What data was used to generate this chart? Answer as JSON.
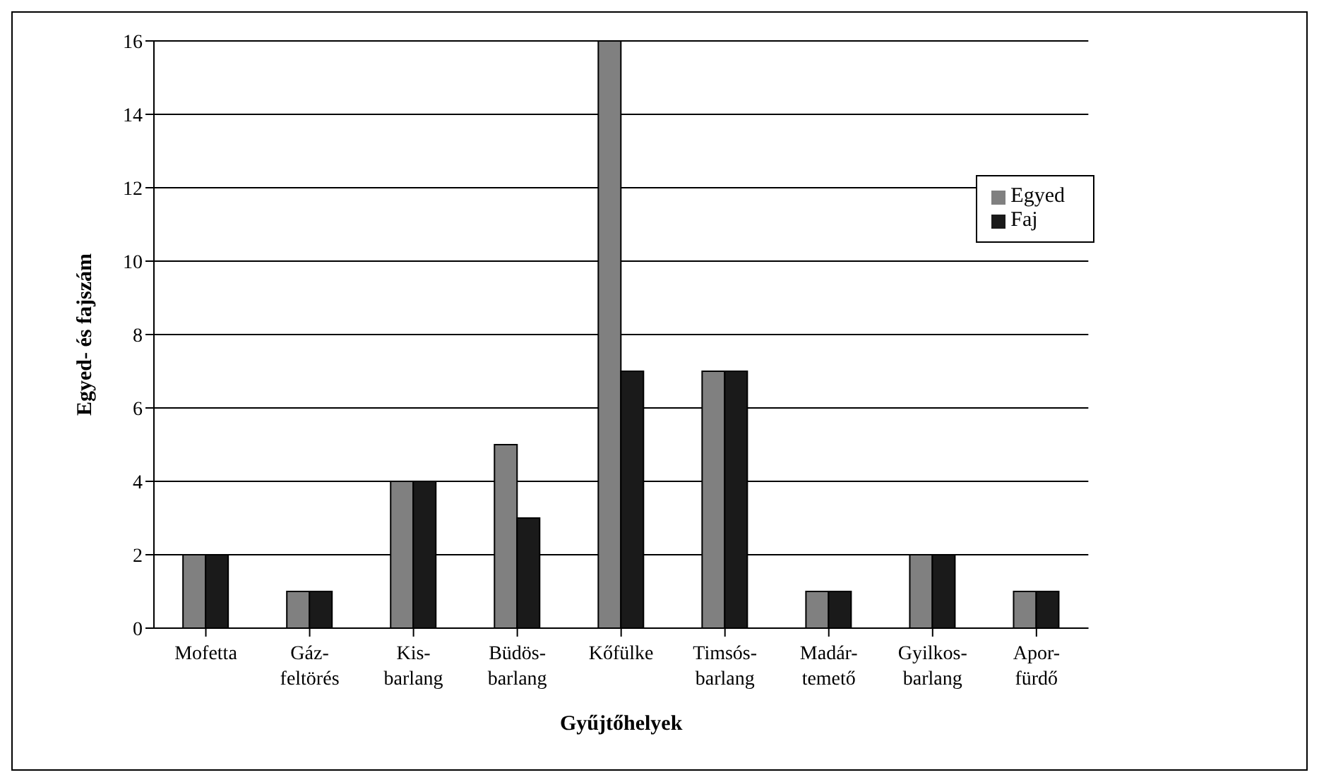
{
  "chart_data": {
    "type": "bar",
    "xlabel": "Gyűjtőhelyek",
    "ylabel": "Egyed- és fajszám",
    "categories": [
      "Mofetta",
      "Gáz-\nfeltörés",
      "Kis-\nbarlang",
      "Büdös-\nbarlang",
      "Kőfülke",
      "Timsós-\nbarlang",
      "Madár-\ntemető",
      "Gyilkos-\nbarlang",
      "Apor-\nfürdő"
    ],
    "series": [
      {
        "name": "Egyed",
        "color": "#808080",
        "values": [
          2,
          1,
          4,
          5,
          16,
          7,
          1,
          2,
          1
        ]
      },
      {
        "name": "Faj",
        "color": "#1a1a1a",
        "values": [
          2,
          1,
          4,
          3,
          7,
          7,
          1,
          2,
          1
        ]
      }
    ],
    "ylim": [
      0,
      16
    ],
    "yticks": [
      0,
      2,
      4,
      6,
      8,
      10,
      12,
      14,
      16
    ],
    "grid": "y",
    "legend": "top right"
  }
}
